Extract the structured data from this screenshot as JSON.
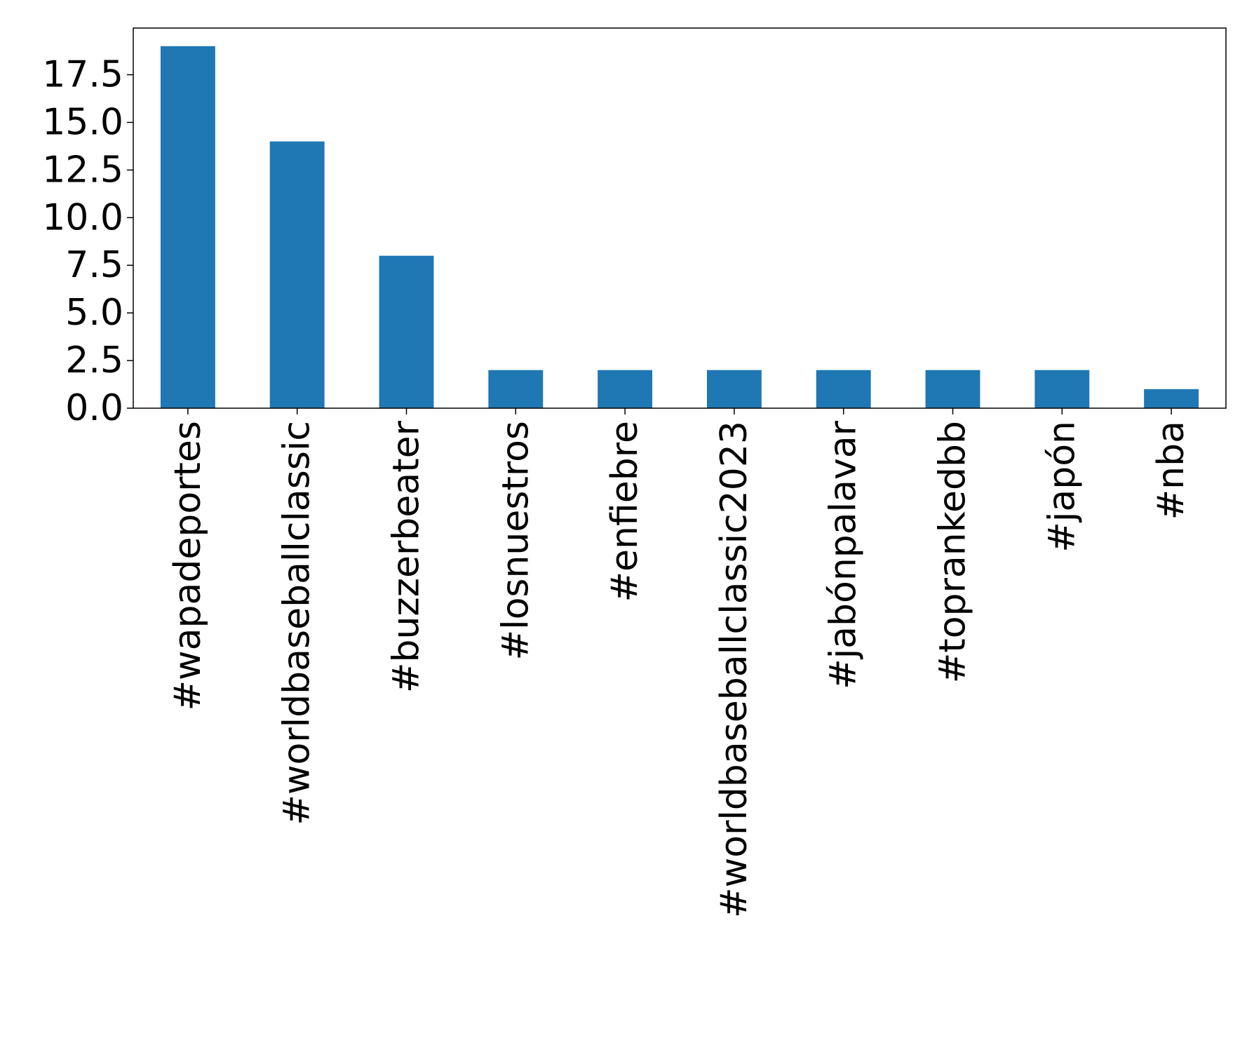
{
  "chart_data": {
    "type": "bar",
    "title": "",
    "xlabel": "",
    "ylabel": "",
    "categories": [
      "#wapadeportes",
      "#worldbaseballclassic",
      "#buzzerbeater",
      "#losnuestros",
      "#enfiebre",
      "#worldbaseballclassic2023",
      "#jabónpalavar",
      "#toprankedbb",
      "#japón",
      "#nba"
    ],
    "values": [
      19,
      14,
      8,
      2,
      2,
      2,
      2,
      2,
      2,
      1
    ],
    "ylim": [
      0,
      19.95
    ],
    "yticks": [
      0.0,
      2.5,
      5.0,
      7.5,
      10.0,
      12.5,
      15.0,
      17.5
    ],
    "ytick_labels": [
      "0.0",
      "2.5",
      "5.0",
      "7.5",
      "10.0",
      "12.5",
      "15.0",
      "17.5"
    ],
    "bar_color": "#1f77b4",
    "grid": false,
    "legend": "none"
  }
}
